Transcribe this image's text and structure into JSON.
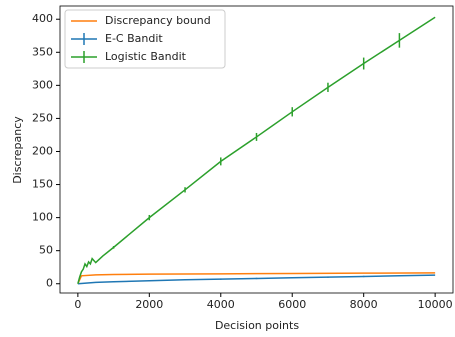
{
  "chart_data": {
    "type": "line",
    "xlabel": "Decision points",
    "ylabel": "Discrepancy",
    "xlim": [
      -500,
      10500
    ],
    "ylim": [
      -14,
      420
    ],
    "xticks": [
      0,
      2000,
      4000,
      6000,
      8000,
      10000
    ],
    "yticks": [
      0,
      50,
      100,
      150,
      200,
      250,
      300,
      350,
      400
    ],
    "legend": "upper left",
    "series": [
      {
        "name": "Discrepancy bound",
        "color": "#ff7f0e",
        "x": [
          0,
          100,
          500,
          1000,
          2000,
          4000,
          6000,
          8000,
          10000
        ],
        "values": [
          0,
          12,
          13.5,
          14,
          14.5,
          15,
          15.5,
          16,
          16.5
        ],
        "errors": [
          null,
          null,
          null,
          null,
          null,
          null,
          null,
          null,
          null
        ]
      },
      {
        "name": "E-C Bandit",
        "color": "#1f77b4",
        "x": [
          0,
          500,
          1000,
          2000,
          3000,
          4000,
          5000,
          6000,
          7000,
          8000,
          9000,
          10000
        ],
        "values": [
          0,
          2,
          3,
          4.5,
          6,
          7,
          8,
          9,
          10,
          11,
          12,
          13
        ],
        "errors": [
          null,
          null,
          1,
          1,
          1,
          1,
          1,
          1,
          1,
          1,
          1,
          null
        ]
      },
      {
        "name": "Logistic Bandit",
        "color": "#2ca02c",
        "x": [
          0,
          50,
          100,
          150,
          200,
          250,
          300,
          350,
          400,
          450,
          500,
          700,
          1000,
          2000,
          3000,
          4000,
          5000,
          6000,
          7000,
          8000,
          9000,
          10000
        ],
        "values": [
          0,
          10,
          18,
          22,
          30,
          26,
          33,
          30,
          38,
          35,
          32,
          42,
          55,
          100,
          142,
          185,
          222,
          260,
          297,
          333,
          368,
          403
        ],
        "errors": [
          null,
          null,
          null,
          null,
          null,
          null,
          null,
          null,
          null,
          null,
          null,
          null,
          2,
          4,
          4,
          6,
          6,
          7,
          7,
          9,
          11,
          null
        ]
      }
    ]
  }
}
